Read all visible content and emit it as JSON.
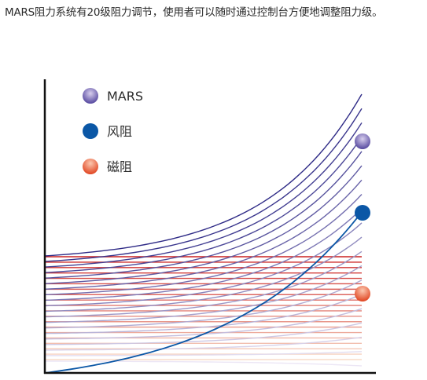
{
  "caption": "MARS阻力系统有20级阻力调节，使用者可以随时通过控制台方便地调整阻力级。",
  "chart_data": {
    "type": "line",
    "title": "",
    "xlabel": "",
    "ylabel": "",
    "levels": 20,
    "grid": false,
    "legend_position": "top-left",
    "legend": [
      {
        "key": "mars",
        "name": "MARS"
      },
      {
        "key": "wind",
        "name": "风阻"
      },
      {
        "key": "magnetic",
        "name": "磁阻"
      }
    ],
    "series": {
      "mars": {
        "name": "MARS",
        "shape": "exponential curves",
        "count": 20,
        "color_from": "#2e2a86",
        "color_to": "#ece6f5",
        "marker_gradient": [
          "#c9bfe3",
          "#4a3c98"
        ]
      },
      "wind": {
        "name": "风阻",
        "shape": "single rising curve",
        "count": 1,
        "color": "#0b57a6"
      },
      "magnetic": {
        "name": "磁阻",
        "shape": "flat horizontal lines",
        "count": 20,
        "color_from": "#cc2222",
        "color_to": "#f9dcc9",
        "marker_gradient": [
          "#fbb39a",
          "#e34a25"
        ]
      }
    }
  }
}
